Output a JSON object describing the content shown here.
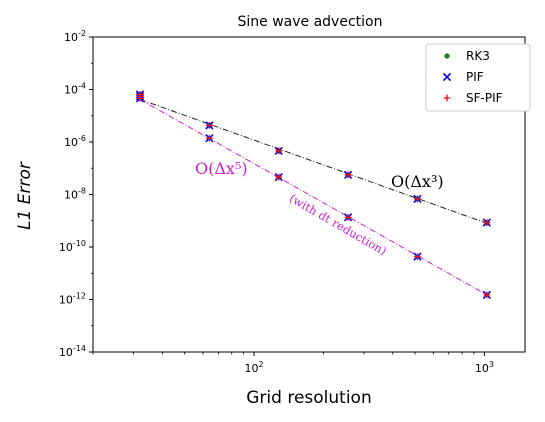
{
  "chart_data": {
    "type": "scatter",
    "title": "Sine wave advection",
    "xlabel": "Grid resolution",
    "ylabel": "L1 Error",
    "xscale": "log",
    "yscale": "log",
    "xlim": [
      20,
      1500
    ],
    "ylim": [
      1e-14,
      0.01
    ],
    "grid": false,
    "legend_position": "top-right",
    "x_ticks": [
      {
        "value": 100,
        "label": "10^2"
      },
      {
        "value": 1000,
        "label": "10^3"
      }
    ],
    "y_ticks": [
      {
        "value": 1e-14,
        "label": "10^-14"
      },
      {
        "value": 1e-12,
        "label": "10^-12"
      },
      {
        "value": 1e-10,
        "label": "10^-10"
      },
      {
        "value": 1e-08,
        "label": "10^-8"
      },
      {
        "value": 1e-06,
        "label": "10^-6"
      },
      {
        "value": 0.0001,
        "label": "10^-4"
      },
      {
        "value": 0.01,
        "label": "10^-2"
      }
    ],
    "series": [
      {
        "name": "RK3",
        "marker": "dot",
        "color": "#1a7a1a",
        "x": [
          32,
          64,
          128,
          256,
          512,
          1024
        ],
        "y": [
          6e-05,
          4.3e-06,
          4.6e-07,
          5.6e-08,
          6.8e-09,
          8.5e-10
        ]
      },
      {
        "name": "PIF",
        "marker": "x",
        "color": "#1010dd",
        "x": [
          32,
          32,
          32,
          64,
          64,
          128,
          128,
          256,
          256,
          512,
          512,
          1024,
          1024
        ],
        "y": [
          6.5e-05,
          5.5e-05,
          4.6e-05,
          4.3e-06,
          1.4e-06,
          4.6e-07,
          4.6e-08,
          5.6e-08,
          1.35e-09,
          6.8e-09,
          4.3e-11,
          8.5e-10,
          1.5e-12
        ]
      },
      {
        "name": "SF-PIF",
        "marker": "plus",
        "color": "#ee1111",
        "x": [
          32,
          32,
          32,
          64,
          64,
          128,
          128,
          256,
          256,
          512,
          512,
          1024,
          1024
        ],
        "y": [
          6.5e-05,
          5.5e-05,
          4.6e-05,
          4.3e-06,
          1.4e-06,
          4.6e-07,
          4.6e-08,
          5.6e-08,
          1.35e-09,
          6.8e-09,
          4.3e-11,
          8.5e-10,
          1.5e-12
        ]
      }
    ],
    "reference_lines": [
      {
        "color": "#222222",
        "x": [
          32,
          1024
        ],
        "y": [
          4.2e-05,
          8e-10
        ]
      },
      {
        "color": "#cc22cc",
        "x": [
          32,
          1024
        ],
        "y": [
          4.2e-05,
          1.5e-12
        ]
      }
    ],
    "annotations": [
      {
        "text": "O(Δx³)",
        "color": "#000000"
      },
      {
        "text": "O(Δx⁵)",
        "color": "#cc22cc"
      },
      {
        "text": "(with dt reduction)",
        "color": "#cc22cc"
      }
    ]
  }
}
